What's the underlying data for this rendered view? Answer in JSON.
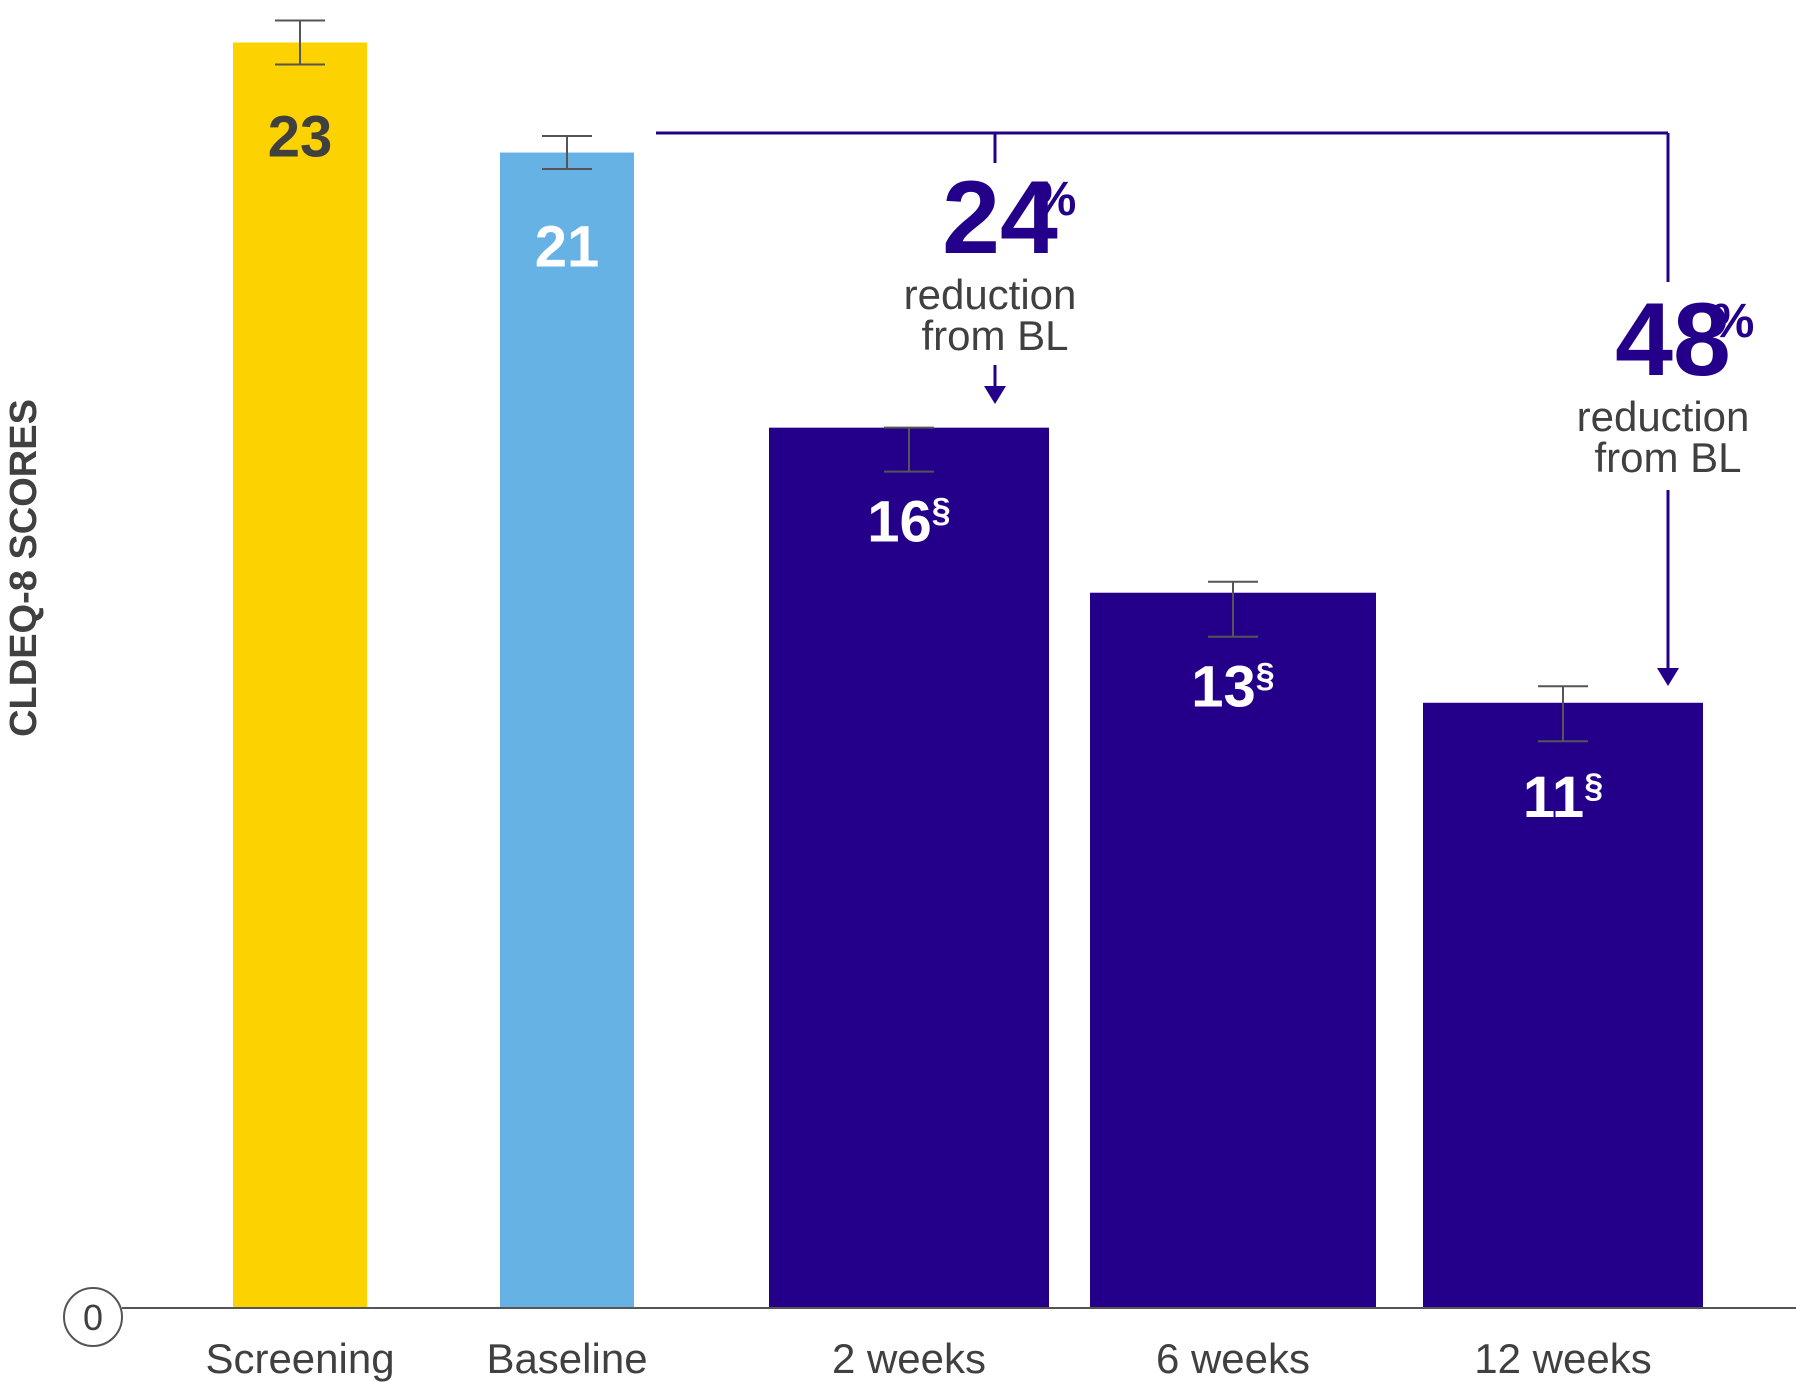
{
  "chart_data": {
    "type": "bar",
    "ylabel": "CLDEQ-8 SCORES",
    "yticks": [
      "0"
    ],
    "categories": [
      "Screening",
      "Baseline",
      "2 weeks",
      "6 weeks",
      "12 weeks"
    ],
    "values": [
      23,
      21,
      16,
      13,
      11
    ],
    "value_labels": [
      "23",
      "21",
      "16",
      "13",
      "11"
    ],
    "value_marks": [
      "",
      "",
      "§",
      "§",
      "§"
    ],
    "error_bars": [
      {
        "low": 22.6,
        "high": 23.4
      },
      {
        "low": 20.7,
        "high": 21.3
      },
      {
        "low": 15.2,
        "high": 16.0
      },
      {
        "low": 12.2,
        "high": 13.2
      },
      {
        "low": 10.3,
        "high": 11.3
      }
    ],
    "bar_colors": [
      "#fcd200",
      "#66b2e4",
      "#24008a",
      "#24008a",
      "#24008a"
    ],
    "label_colors": [
      "#404040",
      "#ffffff",
      "#ffffff",
      "#ffffff",
      "#ffffff"
    ],
    "annotations": [
      {
        "value": "24",
        "unit": "%",
        "line1": "reduction",
        "line2": "from BL",
        "from": "Baseline",
        "to": "2 weeks"
      },
      {
        "value": "48",
        "unit": "%",
        "line1": "reduction",
        "line2": "from BL",
        "from": "Baseline",
        "to": "12 weeks"
      }
    ],
    "annotation_color": "#24008a",
    "ylim": [
      0,
      23.5
    ],
    "grid": false
  }
}
